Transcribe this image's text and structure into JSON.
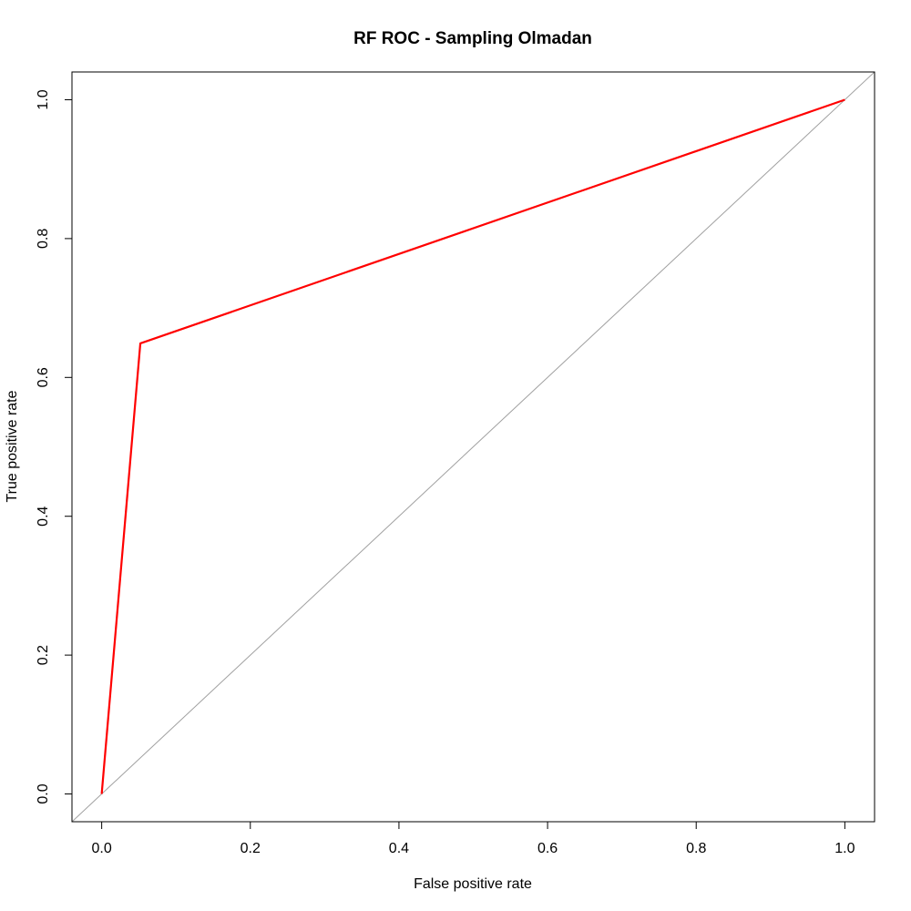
{
  "chart_data": {
    "type": "line",
    "title": "RF ROC - Sampling Olmadan",
    "xlabel": "False positive rate",
    "ylabel": "True positive rate",
    "xlim": [
      -0.04,
      1.04
    ],
    "ylim": [
      -0.04,
      1.04
    ],
    "x_ticks": [
      "0.0",
      "0.2",
      "0.4",
      "0.6",
      "0.8",
      "1.0"
    ],
    "y_ticks": [
      "0.0",
      "0.2",
      "0.4",
      "0.6",
      "0.8",
      "1.0"
    ],
    "grid": false,
    "series": [
      {
        "x": [
          0.0,
          0.052,
          1.0
        ],
        "y": [
          0.0,
          0.649,
          1.0
        ],
        "color": "#ff0000"
      }
    ],
    "reference_line": {
      "intercept": 0,
      "slope": 1,
      "color": "#a0a0a0"
    }
  }
}
